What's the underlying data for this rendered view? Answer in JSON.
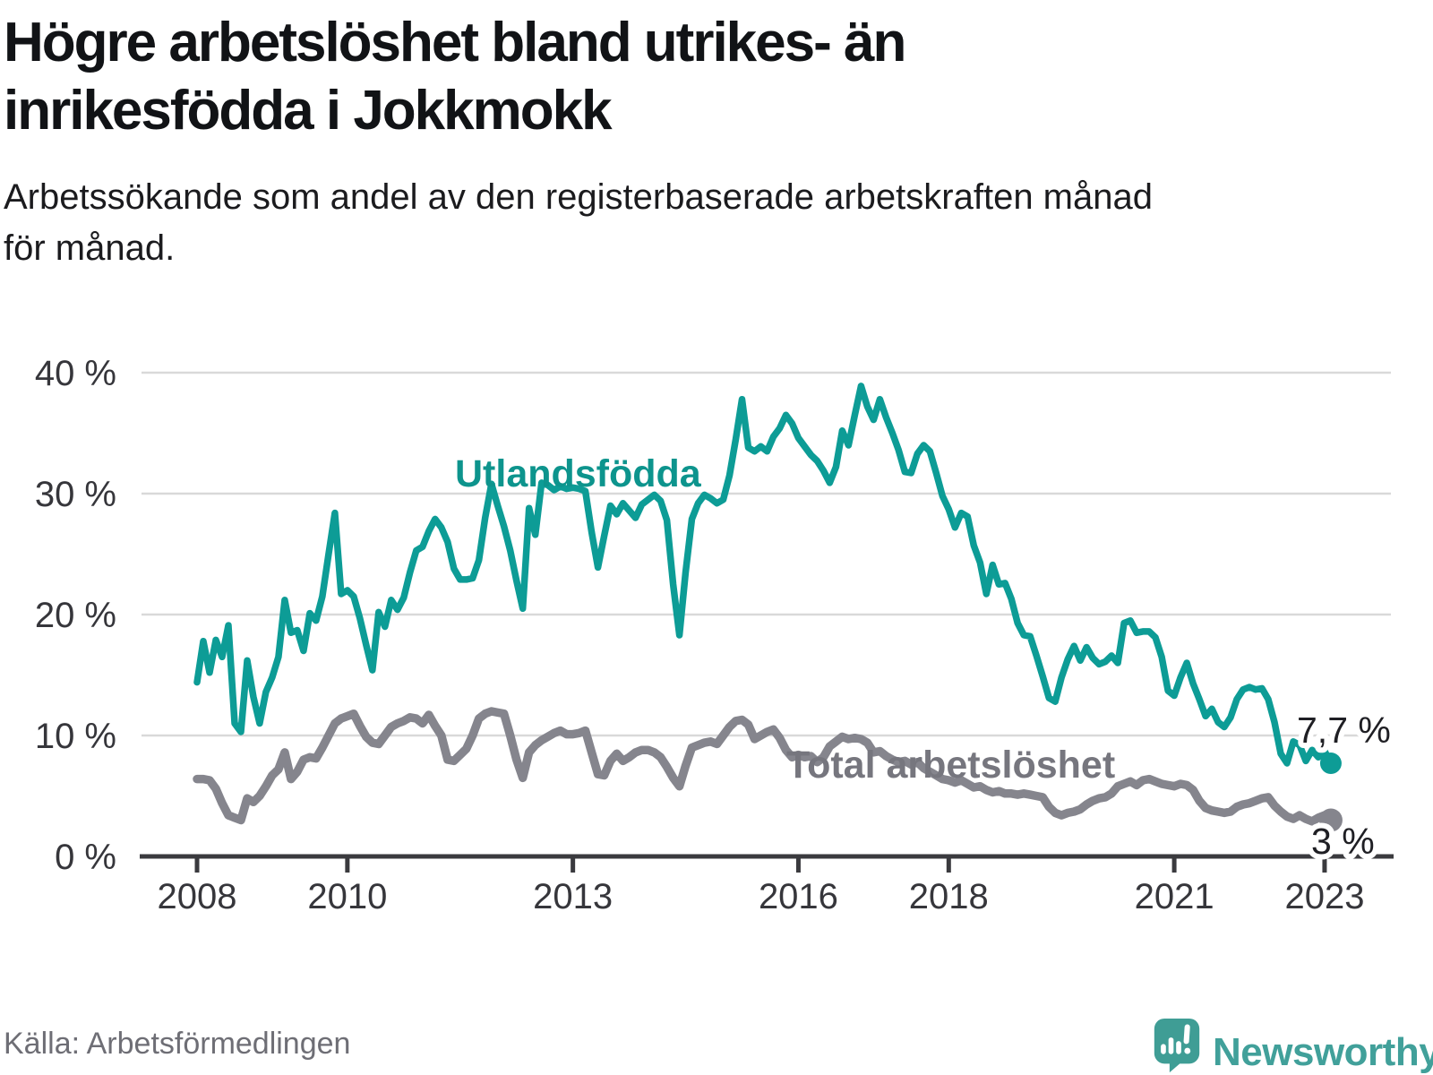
{
  "header": {
    "title_line1": "Högre arbetslöshet bland utrikes- än",
    "title_line2": "inrikesfödda i Jokkmokk",
    "subtitle_line1": "Arbetssökande som andel av den registerbaserade arbetskraften månad",
    "subtitle_line2": "för månad."
  },
  "footer": {
    "source": "Källa: Arbetsförmedlingen",
    "brand": "Newsworthy"
  },
  "colors": {
    "foreign_born_line": "#0d9c96",
    "foreign_born_label": "#0d948d",
    "total_line": "#85858d",
    "total_label": "#76767e",
    "grid": "#d9d9d9",
    "axis": "#3a3a3e",
    "axis_text": "#36363b",
    "value_label": "#1f1f24",
    "brand_teal": "#3f9d95"
  },
  "chart_data": {
    "type": "line",
    "title": "Högre arbetslöshet bland utrikes- än inrikesfödda i Jokkmokk",
    "xlabel": "",
    "ylabel": "",
    "unit": "%",
    "grid": true,
    "cadence": "monthly",
    "x_start_year": 2008,
    "x_end": "2023-02",
    "x_tick_years": [
      2008,
      2010,
      2013,
      2016,
      2018,
      2021,
      2023
    ],
    "x_tick_labels": [
      "2008",
      "2010",
      "2013",
      "2016",
      "2018",
      "2021",
      "2023"
    ],
    "ylim": [
      0,
      40
    ],
    "y_ticks": [
      0,
      10,
      20,
      30,
      40
    ],
    "y_tick_labels": [
      "0 %",
      "10 %",
      "20 %",
      "30 %",
      "40 %"
    ],
    "series": [
      {
        "name": "Total arbetslöshet",
        "color": "#85858d",
        "label_color": "#76767e",
        "end_value_label": "3 %",
        "end_value": 3.0,
        "values": [
          6.4,
          6.4,
          6.3,
          5.6,
          4.4,
          3.4,
          3.2,
          3.0,
          4.8,
          4.5,
          5.0,
          5.8,
          6.7,
          7.2,
          8.6,
          6.4,
          7.0,
          8.0,
          8.2,
          8.1,
          9.0,
          10.0,
          11.0,
          11.4,
          11.6,
          11.8,
          10.8,
          9.9,
          9.4,
          9.3,
          10.0,
          10.7,
          11.0,
          11.2,
          11.5,
          11.4,
          11.0,
          11.7,
          10.8,
          10.0,
          8.0,
          7.9,
          8.4,
          8.9,
          10.0,
          11.4,
          11.8,
          12.0,
          11.9,
          11.8,
          10.0,
          8.0,
          6.5,
          8.6,
          9.2,
          9.6,
          9.9,
          10.2,
          10.4,
          10.1,
          10.1,
          10.2,
          10.4,
          8.6,
          6.8,
          6.7,
          7.9,
          8.5,
          7.9,
          8.2,
          8.6,
          8.8,
          8.8,
          8.6,
          8.2,
          7.4,
          6.5,
          5.8,
          7.5,
          9.0,
          9.2,
          9.4,
          9.5,
          9.3,
          10.0,
          10.7,
          11.2,
          11.3,
          10.9,
          9.7,
          10.0,
          10.3,
          10.5,
          9.8,
          8.8,
          8.2,
          8.4,
          8.2,
          8.3,
          7.8,
          8.2,
          9.1,
          9.5,
          9.9,
          9.7,
          9.8,
          9.7,
          9.4,
          8.6,
          8.7,
          8.3,
          8.0,
          7.8,
          7.9,
          7.6,
          7.8,
          7.3,
          7.0,
          6.7,
          6.4,
          6.3,
          6.1,
          6.3,
          6.0,
          5.7,
          5.8,
          5.5,
          5.3,
          5.4,
          5.2,
          5.2,
          5.1,
          5.2,
          5.1,
          5.0,
          4.9,
          4.1,
          3.6,
          3.4,
          3.6,
          3.7,
          3.9,
          4.3,
          4.6,
          4.8,
          4.9,
          5.2,
          5.8,
          6.0,
          6.2,
          5.9,
          6.3,
          6.4,
          6.2,
          6.0,
          5.9,
          5.8,
          6.0,
          5.9,
          5.5,
          4.6,
          4.0,
          3.8,
          3.7,
          3.6,
          3.7,
          4.1,
          4.3,
          4.4,
          4.6,
          4.8,
          4.9,
          4.2,
          3.7,
          3.3,
          3.1,
          3.4,
          3.1,
          2.9,
          3.2,
          3.4,
          3.0
        ]
      },
      {
        "name": "Utlandsfödda",
        "color": "#0d9c96",
        "label_color": "#0d948d",
        "end_value_label": "7,7 %",
        "end_value": 7.7,
        "values": [
          14.4,
          17.8,
          15.2,
          17.9,
          16.5,
          19.1,
          11.0,
          10.3,
          16.2,
          13.2,
          11.0,
          13.6,
          14.8,
          16.5,
          21.2,
          18.5,
          18.7,
          17.0,
          20.1,
          19.5,
          21.5,
          25.0,
          28.4,
          21.7,
          22.0,
          21.5,
          19.7,
          17.5,
          15.4,
          20.2,
          19.0,
          21.2,
          20.4,
          21.4,
          23.5,
          25.3,
          25.6,
          26.9,
          27.9,
          27.2,
          26.0,
          23.8,
          22.9,
          22.9,
          23.0,
          24.5,
          28.0,
          30.8,
          29.0,
          27.3,
          25.3,
          22.8,
          20.5,
          28.8,
          26.6,
          30.9,
          30.7,
          30.3,
          30.6,
          30.4,
          30.5,
          30.4,
          30.2,
          26.8,
          23.9,
          26.5,
          29.0,
          28.3,
          29.2,
          28.6,
          28.0,
          29.1,
          29.5,
          29.9,
          29.4,
          27.8,
          22.5,
          18.3,
          23.5,
          27.9,
          29.2,
          29.9,
          29.6,
          29.2,
          29.5,
          31.5,
          34.5,
          37.8,
          33.8,
          33.5,
          33.9,
          33.5,
          34.7,
          35.4,
          36.5,
          35.8,
          34.6,
          33.9,
          33.2,
          32.7,
          31.9,
          30.9,
          32.2,
          35.2,
          34.0,
          36.5,
          38.9,
          37.2,
          36.1,
          37.8,
          36.3,
          35.0,
          33.6,
          31.8,
          31.7,
          33.3,
          34.0,
          33.5,
          31.7,
          29.8,
          28.7,
          27.2,
          28.4,
          28.1,
          25.7,
          24.3,
          21.7,
          24.1,
          22.5,
          22.6,
          21.3,
          19.3,
          18.3,
          18.2,
          16.6,
          14.9,
          13.1,
          12.8,
          14.8,
          16.3,
          17.4,
          16.2,
          17.3,
          16.4,
          15.9,
          16.1,
          16.6,
          16.0,
          19.3,
          19.5,
          18.5,
          18.6,
          18.6,
          18.1,
          16.5,
          13.7,
          13.3,
          14.8,
          16.0,
          14.3,
          13.0,
          11.6,
          12.2,
          11.1,
          10.7,
          11.5,
          13.0,
          13.8,
          14.0,
          13.8,
          13.9,
          13.0,
          11.1,
          8.5,
          7.7,
          9.5,
          9.2,
          7.9,
          8.8,
          8.2,
          8.7,
          7.7
        ]
      }
    ],
    "annotations": {
      "foreign_series_label": "Utlandsfödda",
      "total_series_label": "Total arbetslöshet"
    },
    "legend_position": "inline-labels"
  }
}
